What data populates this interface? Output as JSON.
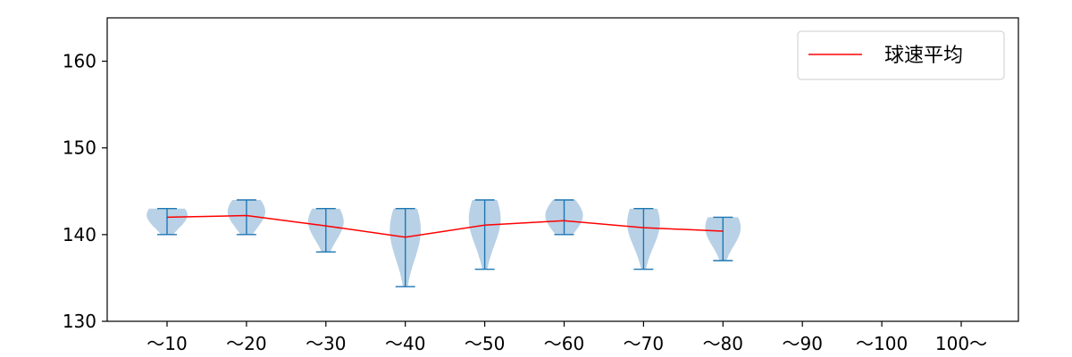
{
  "chart_data": {
    "type": "violin",
    "categories": [
      "～10",
      "～20",
      "～30",
      "～40",
      "～50",
      "～60",
      "～70",
      "～80",
      "～90",
      "～100",
      "100～"
    ],
    "ylim": [
      130,
      165
    ],
    "yticks": [
      130,
      140,
      150,
      160
    ],
    "grid": false,
    "legend": {
      "placement": "top-right",
      "entries": [
        {
          "label": "球速平均",
          "color": "#ff0000"
        }
      ]
    },
    "series": [
      {
        "name": "球速平均",
        "color": "#ff0000",
        "values": [
          142.0,
          142.2,
          141.0,
          139.7,
          141.1,
          141.6,
          140.8,
          140.4,
          null,
          null,
          null
        ]
      }
    ],
    "distributions": [
      {
        "category": "～10",
        "min": 140,
        "max": 143
      },
      {
        "category": "～20",
        "min": 140,
        "max": 144
      },
      {
        "category": "～30",
        "min": 138,
        "max": 143
      },
      {
        "category": "～40",
        "min": 134,
        "max": 143
      },
      {
        "category": "～50",
        "min": 136,
        "max": 144
      },
      {
        "category": "～60",
        "min": 140,
        "max": 144
      },
      {
        "category": "～70",
        "min": 136,
        "max": 143
      },
      {
        "category": "～80",
        "min": 137,
        "max": 142
      },
      {
        "category": "～90",
        "min": null,
        "max": null
      },
      {
        "category": "～100",
        "min": null,
        "max": null
      },
      {
        "category": "100～",
        "min": null,
        "max": null
      }
    ],
    "colors": {
      "violin_fill": "#a6c6e0",
      "violin_edge": "#1f77b4",
      "mean_line": "#ff0000",
      "axes": "#000000"
    }
  }
}
